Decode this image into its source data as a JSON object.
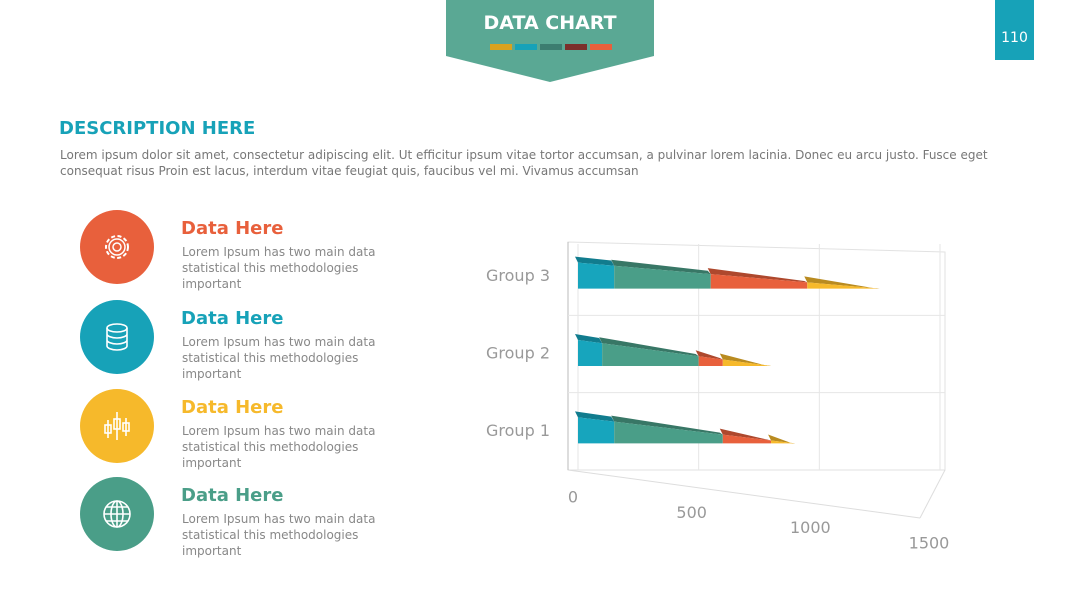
{
  "header": {
    "title": "DATA CHART",
    "page_number": "110"
  },
  "description": {
    "title": "DESCRIPTION HERE",
    "text": "Lorem ipsum dolor sit amet, consectetur adipiscing elit. Ut efficitur ipsum vitae tortor accumsan, a pulvinar lorem lacinia. Donec eu arcu justo. Fusce eget consequat risus Proin est lacus, interdum vitae feugiat quis, faucibus vel mi.  Vivamus accumsan"
  },
  "items": [
    {
      "title": "Data Here",
      "text": "Lorem Ipsum has two main data statistical this methodologies important"
    },
    {
      "title": "Data Here",
      "text": "Lorem Ipsum has two main data statistical this methodologies important"
    },
    {
      "title": "Data Here",
      "text": "Lorem Ipsum has two main data statistical this methodologies important"
    },
    {
      "title": "Data Here",
      "text": "Lorem Ipsum has two main data statistical this methodologies important"
    }
  ],
  "chart_data": {
    "type": "bar",
    "orientation": "horizontal",
    "stacked": true,
    "categories": [
      "Group 1",
      "Group 2",
      "Group 3"
    ],
    "series": [
      {
        "color": "#17a5bd",
        "values": [
          150,
          100,
          150
        ]
      },
      {
        "color": "#4a9e88",
        "values": [
          450,
          400,
          400
        ]
      },
      {
        "color": "#e8603c",
        "values": [
          200,
          100,
          400
        ]
      },
      {
        "color": "#f6b92b",
        "values": [
          100,
          200,
          300
        ]
      }
    ],
    "xlim": [
      0,
      1500
    ],
    "xticks": [
      0,
      500,
      1000,
      1500
    ],
    "grid": true
  }
}
